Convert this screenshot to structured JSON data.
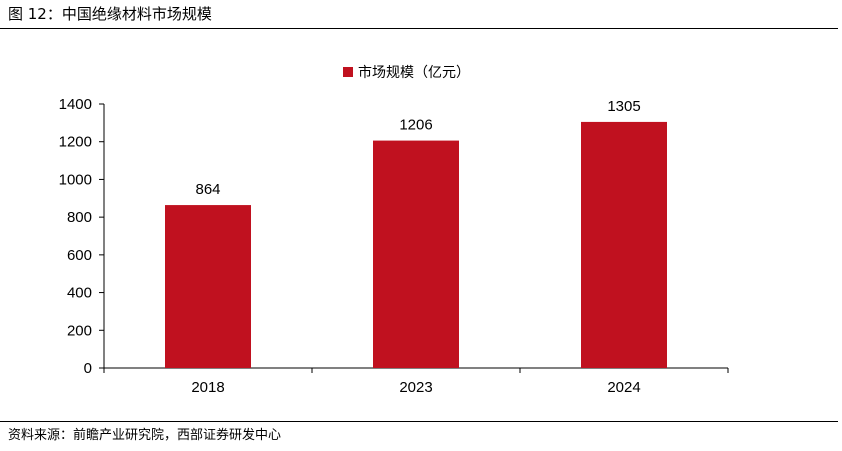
{
  "figure": {
    "title": "图 12：中国绝缘材料市场规模",
    "source": "资料来源：前瞻产业研究院，西部证券研发中心"
  },
  "colors": {
    "bar": "#c0111f",
    "axis": "#000000"
  },
  "chart_data": {
    "type": "bar",
    "categories": [
      "2018",
      "2023",
      "2024"
    ],
    "series": [
      {
        "name": "市场规模（亿元）",
        "values": [
          864,
          1206,
          1305
        ]
      }
    ],
    "data_labels": [
      "864",
      "1206",
      "1305"
    ],
    "yticks": [
      "0",
      "200",
      "400",
      "600",
      "800",
      "1000",
      "1200",
      "1400"
    ],
    "ylim": [
      0,
      1400
    ],
    "grid": false,
    "legend_position": "top-center",
    "xlabel": "",
    "ylabel": ""
  }
}
